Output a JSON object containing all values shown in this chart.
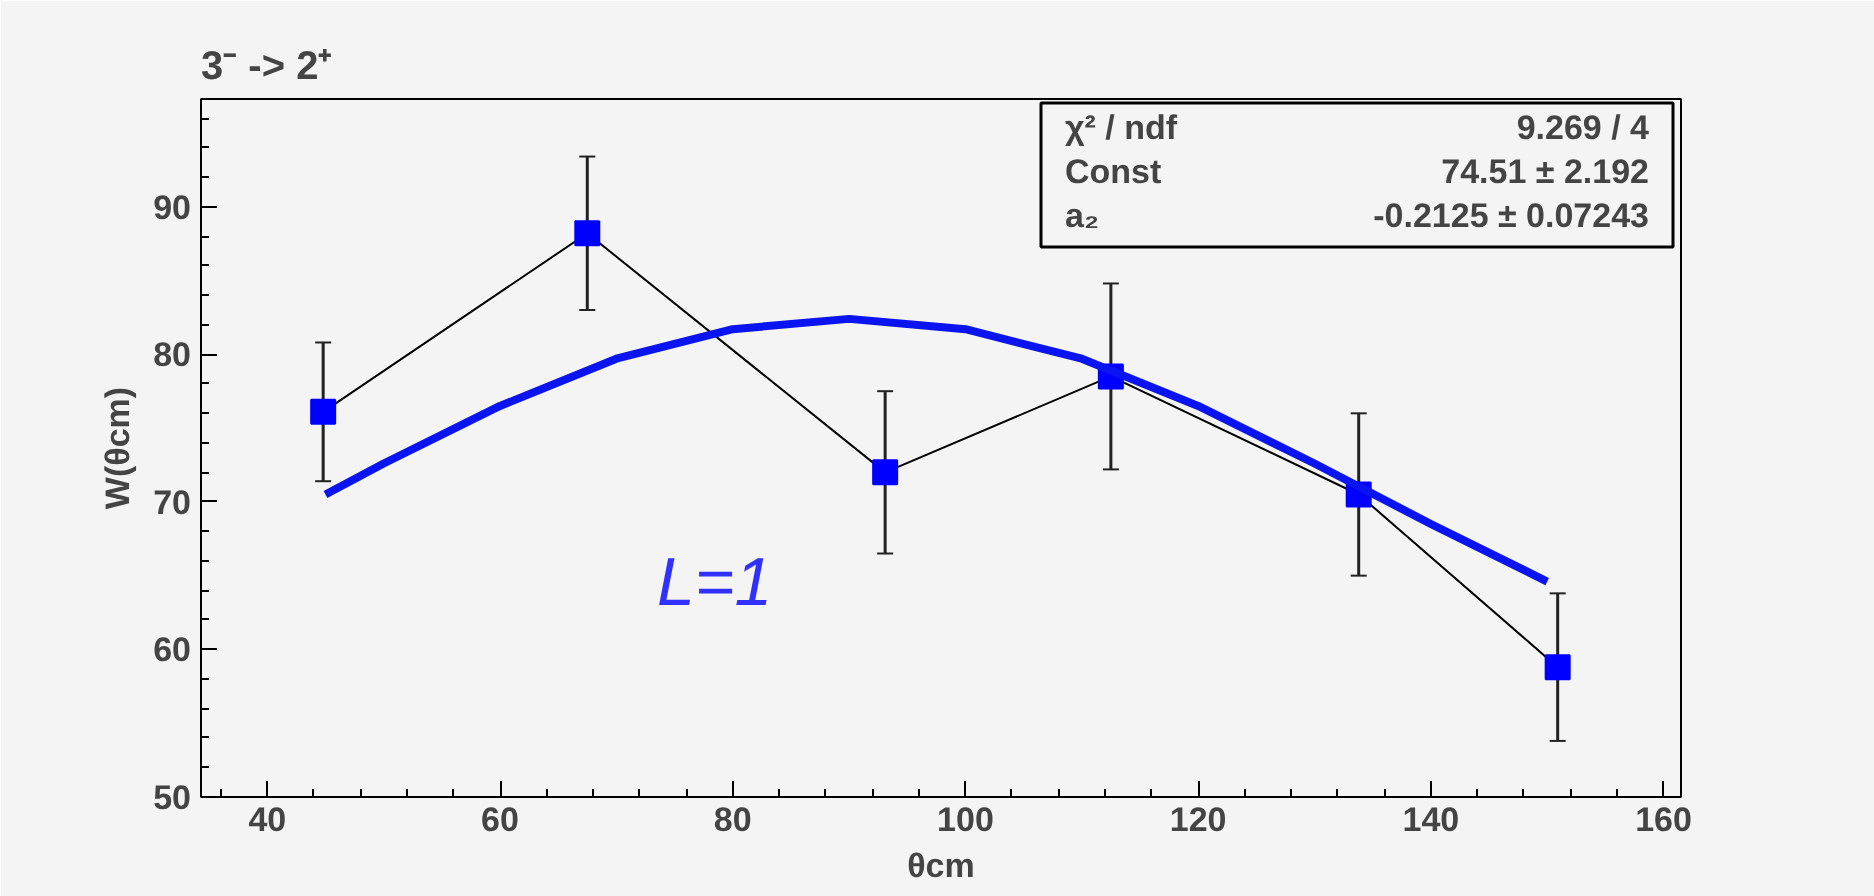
{
  "chart_data": {
    "type": "line",
    "title": "3⁻ -> 2⁺",
    "xlabel": "θcm",
    "ylabel": "W(θcm)",
    "xlim": [
      34.3,
      161.5
    ],
    "ylim": [
      50,
      97.3
    ],
    "xticks": [
      40,
      60,
      80,
      100,
      120,
      140,
      160
    ],
    "yticks": [
      50,
      60,
      70,
      80,
      90
    ],
    "grid": false,
    "marker": "square",
    "line_style": "solid",
    "annotations": [
      "L=1",
      "χ² / ndf",
      "9.269 / 4",
      "Const",
      "74.51 ± 2.192",
      "a₂",
      "-0.2125 ± 0.07243"
    ],
    "series": [
      {
        "type": "line",
        "color": "#0000ff",
        "x": [
          44.8,
          67.5,
          93.1,
          112.5,
          133.8,
          150.9
        ],
        "values": [
          76.1,
          88.2,
          72.0,
          78.5,
          70.5,
          58.8
        ],
        "errors": [
          4.7,
          5.2,
          5.5,
          6.3,
          5.5,
          5.0
        ]
      },
      {
        "type": "line",
        "color": "#0a14f0",
        "marker": "none",
        "x": [
          45,
          50,
          60,
          70,
          80,
          90,
          100,
          110,
          120,
          130,
          140,
          150
        ],
        "values": [
          70.5,
          72.6,
          76.5,
          79.7,
          81.7,
          82.4,
          81.7,
          79.7,
          76.5,
          72.6,
          68.5,
          64.6
        ]
      }
    ]
  }
}
